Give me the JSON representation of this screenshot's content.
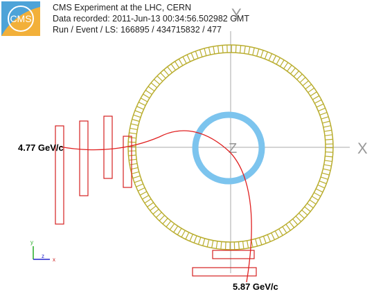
{
  "header": {
    "logo": "CMS",
    "lines": [
      "CMS Experiment at the LHC, CERN",
      "Data recorded: 2011-Jun-13 00:34:56.502982 GMT",
      "Run / Event / LS: 166895 / 434715832 / 477"
    ]
  },
  "axes": {
    "x": "X",
    "y": "Y",
    "z": "Z"
  },
  "tracks": [
    "4.77 GeV/c",
    "5.87 GeV/c"
  ],
  "triad": {
    "y": "y",
    "z": "z",
    "x": "x"
  }
}
